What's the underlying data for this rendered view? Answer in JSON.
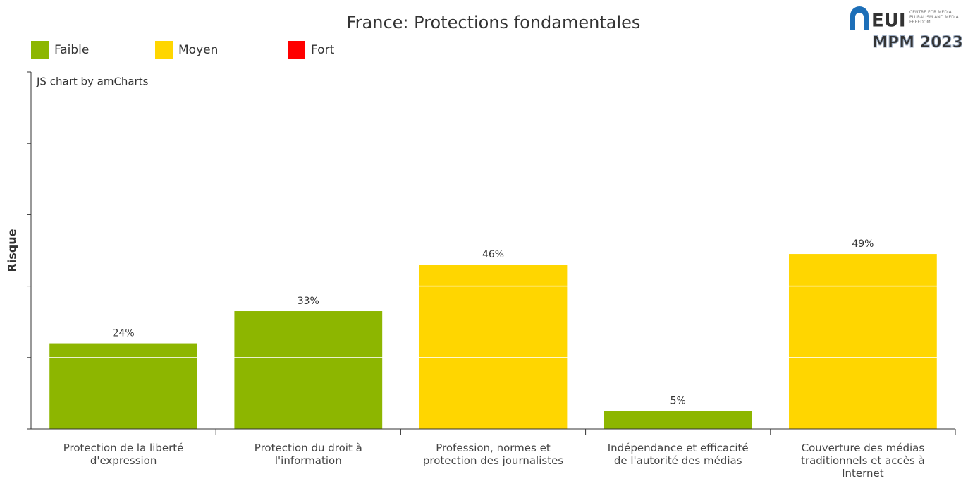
{
  "chart_data": {
    "type": "bar",
    "title": "France: Protections fondamentales",
    "credit": "JS chart by amCharts",
    "ylabel": "Risque",
    "legend": [
      {
        "name": "Faible",
        "color": "#8db600"
      },
      {
        "name": "Moyen",
        "color": "#ffd600"
      },
      {
        "name": "Fort",
        "color": "#ff0000"
      }
    ],
    "categories": [
      "Protection de la liberté d'expression",
      "Protection du droit à l'information",
      "Profession, normes et protection des journalistes",
      "Indépendance et efficacité de l'autorité des médias",
      "Couverture des médias traditionnels et accès à Internet"
    ],
    "values": [
      24,
      33,
      46,
      5,
      49
    ],
    "value_labels": [
      "24%",
      "33%",
      "46%",
      "5%",
      "49%"
    ],
    "colors": [
      "#8db600",
      "#8db600",
      "#ffd600",
      "#8db600",
      "#ffd600"
    ],
    "ylim": [
      0,
      100
    ],
    "yticks": [
      0,
      20,
      40,
      60,
      80,
      100
    ],
    "grid": true,
    "logo": {
      "name": "EUI",
      "subtitle": "CENTRE FOR MEDIA PLURALISM AND MEDIA FREEDOM",
      "edition": "MPM 2023"
    }
  }
}
